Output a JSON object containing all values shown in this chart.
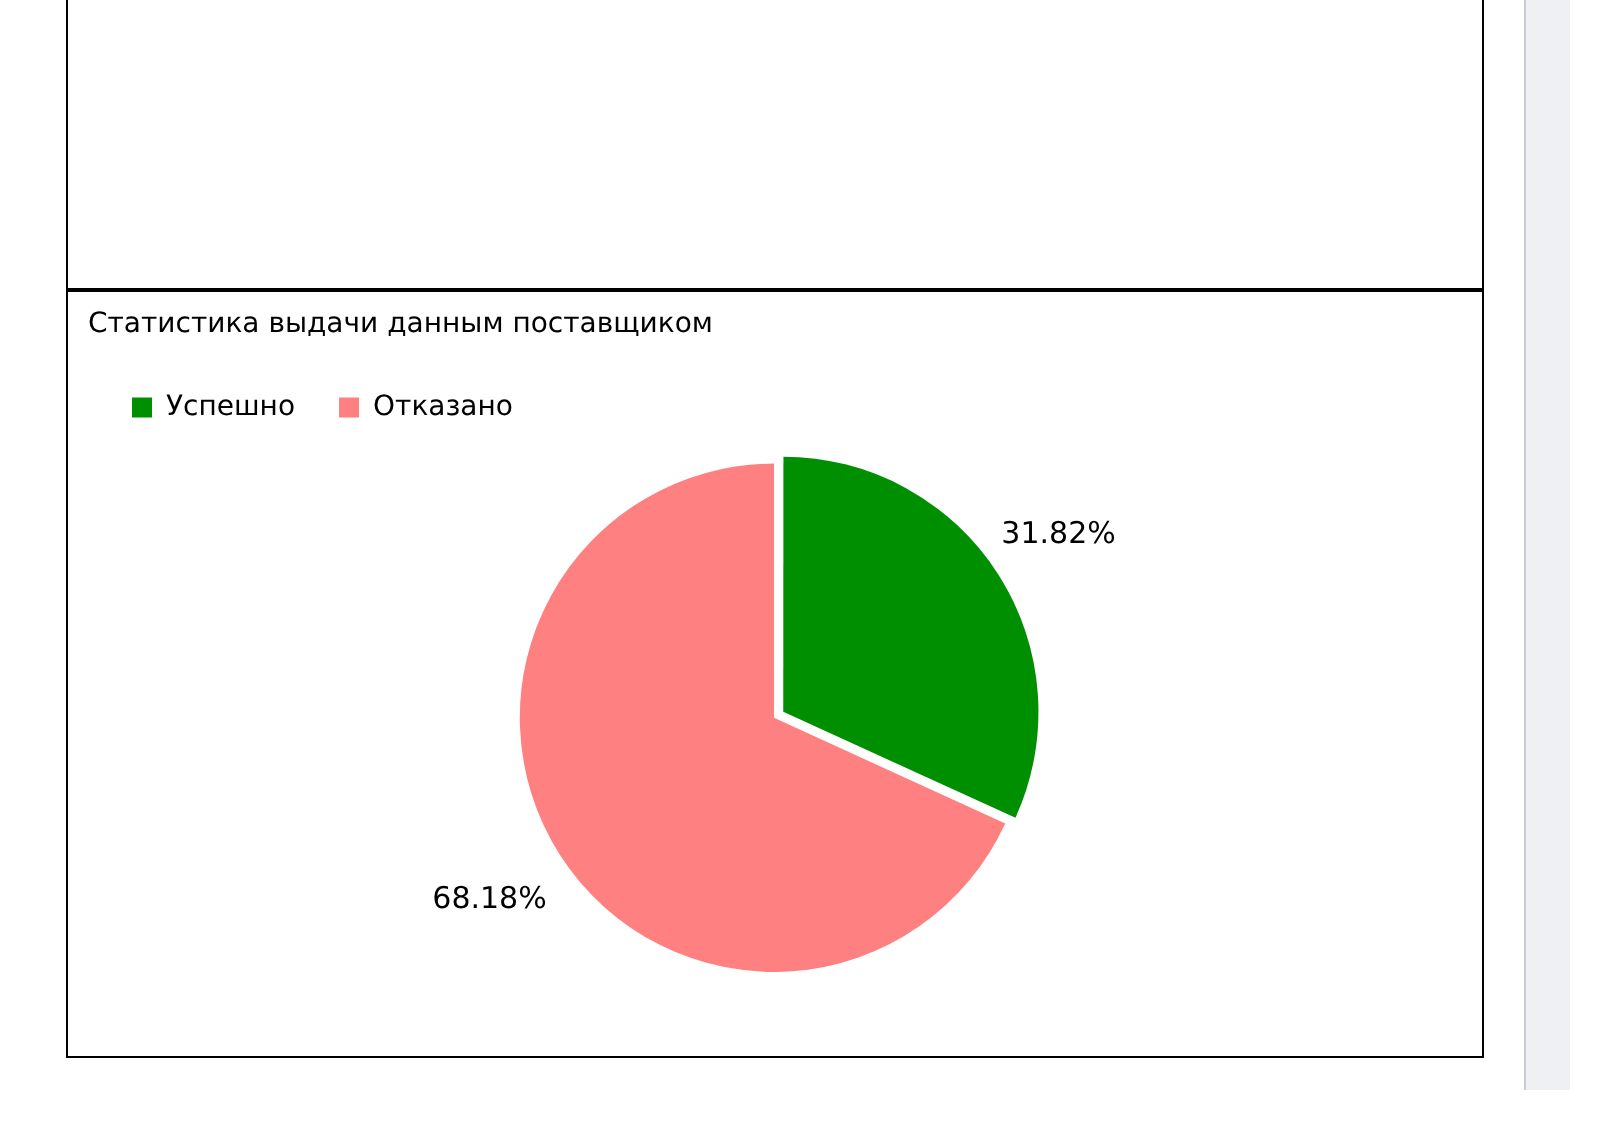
{
  "chart_data": {
    "type": "pie",
    "title": "Статистика выдачи данным поставщиком",
    "categories": [
      "Успешно",
      "Отказано"
    ],
    "values": [
      31.82,
      68.18
    ],
    "colors": [
      "#008f00",
      "#ff8080"
    ],
    "value_labels": [
      "31.82%",
      "68.18%"
    ],
    "legend": "top left"
  }
}
